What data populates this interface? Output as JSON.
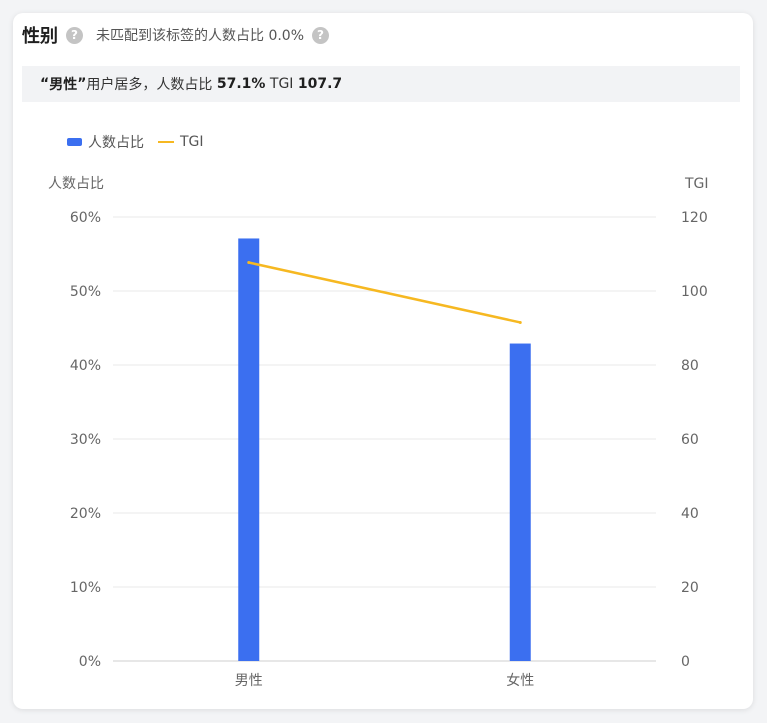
{
  "header": {
    "title": "性别",
    "unmatched_label": "未匹配到该标签的人数占比",
    "unmatched_value": "0.0%",
    "help_icon": "question-circle-icon"
  },
  "summary": {
    "open_quote": "“",
    "top_group": "男性",
    "close_quote": "”",
    "middle_text": "用户居多，人数占比",
    "share": "57.1%",
    "tgi_label": "TGI",
    "tgi_value": "107.7"
  },
  "colors": {
    "bar": "#3b6ff0",
    "line": "#f6b821",
    "grid": "#e8e8e8"
  },
  "chart_data": {
    "type": "bar",
    "categories": [
      "男性",
      "女性"
    ],
    "series": [
      {
        "name": "人数占比",
        "type": "bar",
        "axis": "left",
        "values": [
          57.1,
          42.9
        ]
      },
      {
        "name": "TGI",
        "type": "line",
        "axis": "right",
        "values": [
          107.7,
          91.5
        ]
      }
    ],
    "left_axis": {
      "label": "人数占比",
      "min": 0,
      "max": 60,
      "ticks": [
        0,
        10,
        20,
        30,
        40,
        50,
        60
      ],
      "tick_labels": [
        "0%",
        "10%",
        "20%",
        "30%",
        "40%",
        "50%",
        "60%"
      ]
    },
    "right_axis": {
      "label": "TGI",
      "min": 0,
      "max": 120,
      "ticks": [
        0,
        20,
        40,
        60,
        80,
        100,
        120
      ],
      "tick_labels": [
        "0",
        "20",
        "40",
        "60",
        "80",
        "100",
        "120"
      ]
    },
    "grid": true,
    "legend_position": "top-left"
  }
}
